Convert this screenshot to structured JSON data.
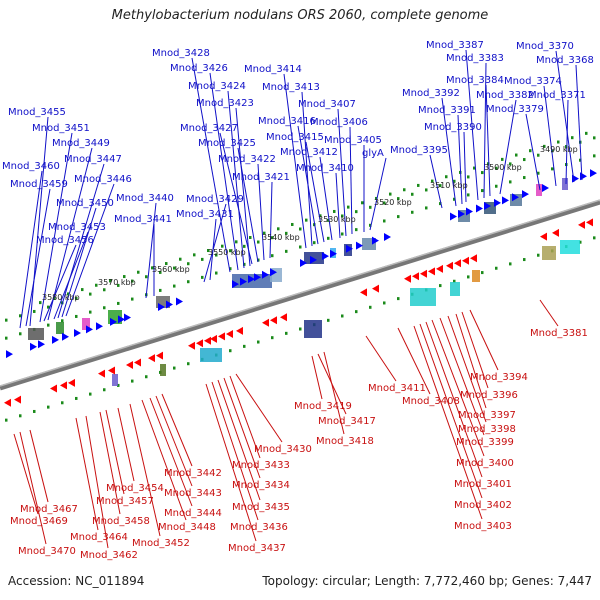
{
  "title": "Methylobacterium nodulans ORS 2060, complete genome",
  "footer": {
    "accession": "Accession: NC_011894",
    "topology": "Topology: circular; Length: 7,772,460 bp; Genes: 7,447"
  },
  "colors": {
    "top_label": "#1010c8",
    "bottom_label": "#c81010",
    "axis": "#888888",
    "tick": "#1a8a1a",
    "forward_gene": "#0000ff",
    "reverse_gene": "#ff0000"
  },
  "scale_labels": [
    "3490 kbp",
    "3500 kbp",
    "3510 kbp",
    "3520 kbp",
    "3530 kbp",
    "3540 kbp",
    "3550 kbp",
    "3560 kbp",
    "3570 kbp",
    "3580 kbp"
  ],
  "top_genes": [
    "Mnod_3428",
    "Mnod_3426",
    "Mnod_3424",
    "Mnod_3423",
    "Mnod_3427",
    "Mnod_3425",
    "Mnod_3422",
    "Mnod_3421",
    "Mnod_3414",
    "Mnod_3413",
    "Mnod_3416",
    "Mnod_3415",
    "Mnod_3412",
    "Mnod_3410",
    "Mnod_3407",
    "Mnod_3406",
    "Mnod_3405",
    "glyA",
    "Mnod_3387",
    "Mnod_3383",
    "Mnod_3384",
    "Mnod_3392",
    "Mnod_3382",
    "Mnod_3391",
    "Mnod_3390",
    "Mnod_3395",
    "Mnod_3370",
    "Mnod_3368",
    "Mnod_3374",
    "Mnod_3371",
    "Mnod_3379",
    "Mnod_3455",
    "Mnod_3451",
    "Mnod_3449",
    "Mnod_3447",
    "Mnod_3460",
    "Mnod_3446",
    "Mnod_3459",
    "Mnod_3450",
    "Mnod_3453",
    "Mnod_3456",
    "Mnod_3440",
    "Mnod_3441",
    "Mnod_3429",
    "Mnod_3431"
  ],
  "bottom_genes": [
    "Mnod_3381",
    "Mnod_3394",
    "Mnod_3396",
    "Mnod_3397",
    "Mnod_3398",
    "Mnod_3399",
    "Mnod_3400",
    "Mnod_3401",
    "Mnod_3402",
    "Mnod_3403",
    "Mnod_3411",
    "Mnod_3408",
    "Mnod_3419",
    "Mnod_3417",
    "Mnod_3418",
    "Mnod_3430",
    "Mnod_3433",
    "Mnod_3434",
    "Mnod_3435",
    "Mnod_3436",
    "Mnod_3437",
    "Mnod_3442",
    "Mnod_3443",
    "Mnod_3444",
    "Mnod_3448",
    "Mnod_3452",
    "Mnod_3454",
    "Mnod_3457",
    "Mnod_3458",
    "Mnod_3462",
    "Mnod_3464",
    "Mnod_3467",
    "Mnod_3469",
    "Mnod_3470"
  ]
}
